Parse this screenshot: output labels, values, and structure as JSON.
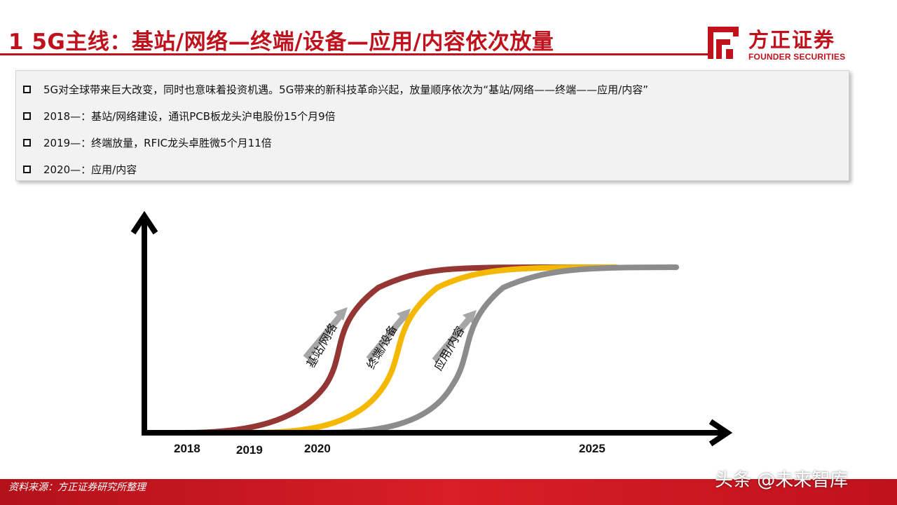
{
  "header": {
    "title": "1 5G主线：基站/网络—终端/设备—应用/内容依次放量",
    "logo": {
      "name_cn": "方正证券",
      "name_en": "FOUNDER SECURITIES",
      "icon": "founder-logo-icon"
    }
  },
  "bullets": [
    "5G对全球带来巨大改变，同时也意味着投资机遇。5G带来的新科技革命兴起，放量顺序依次为“基站/网络——终端——应用/内容”",
    "2018—：基站/网络建设，通讯PCB板龙头沪电股份15个月9倍",
    "2019—：终端放量，RFIC龙头卓胜微5个月11倍",
    "2020—：应用/内容"
  ],
  "diagram": {
    "stages": [
      {
        "label": "基站/网络",
        "color": "#943634"
      },
      {
        "label": "终端/设备",
        "color": "#f5b800"
      },
      {
        "label": "应用/内容",
        "color": "#8c8c8c"
      }
    ],
    "years": [
      "2018",
      "2019",
      "2020",
      "2025"
    ],
    "arrow_color": "#a6a6a6",
    "axis_color": "#000000"
  },
  "footer": {
    "source": "资料来源：方正证券研究所整理",
    "watermark": "头条 @未来智库",
    "bar_color": "#c0121c"
  },
  "colors": {
    "accent": "#c0121c",
    "panel": "#f2f2f2"
  }
}
